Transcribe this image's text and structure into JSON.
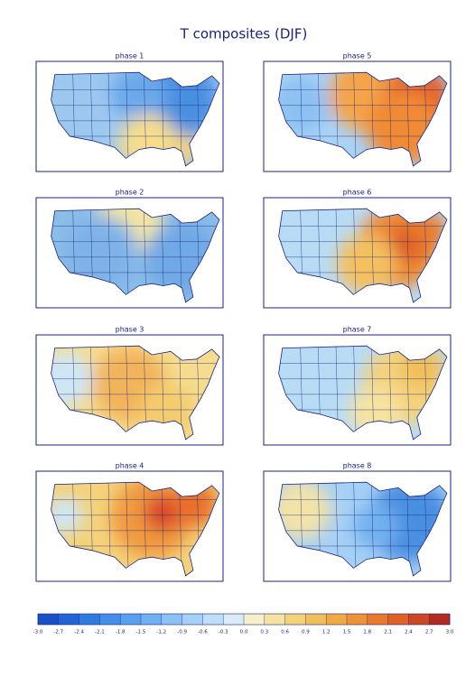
{
  "title": "T composites (DJF)",
  "panels": [
    "phase 1",
    "phase 5",
    "phase 2",
    "phase 6",
    "phase 3",
    "phase 7",
    "phase 4",
    "phase 8"
  ],
  "colorbar": {
    "ticks": [
      {
        "value": -3,
        "label": "-3.0"
      },
      -2.7,
      -2.4,
      -2.1,
      -1.8,
      -1.5,
      -1.2,
      -0.9,
      -0.6,
      -0.3,
      {
        "value": 0,
        "label": "0.0"
      },
      0.3,
      0.6,
      0.9,
      1.2,
      1.5,
      1.8,
      2.1,
      2.4,
      2.7,
      {
        "value": 3,
        "label": "3.0"
      }
    ],
    "colors": [
      "#1b4fc4",
      "#2264d4",
      "#2f7ade",
      "#438ee6",
      "#5aa0ec",
      "#72b1f0",
      "#8cc1f3",
      "#a6d0f5",
      "#c0dff7",
      "#daecf8",
      "#f8f0c6",
      "#f6e3a0",
      "#f4d27a",
      "#f2c05a",
      "#f0aa44",
      "#ee9236",
      "#e97a2c",
      "#e06226",
      "#cf4622",
      "#b52a1e"
    ]
  }
}
